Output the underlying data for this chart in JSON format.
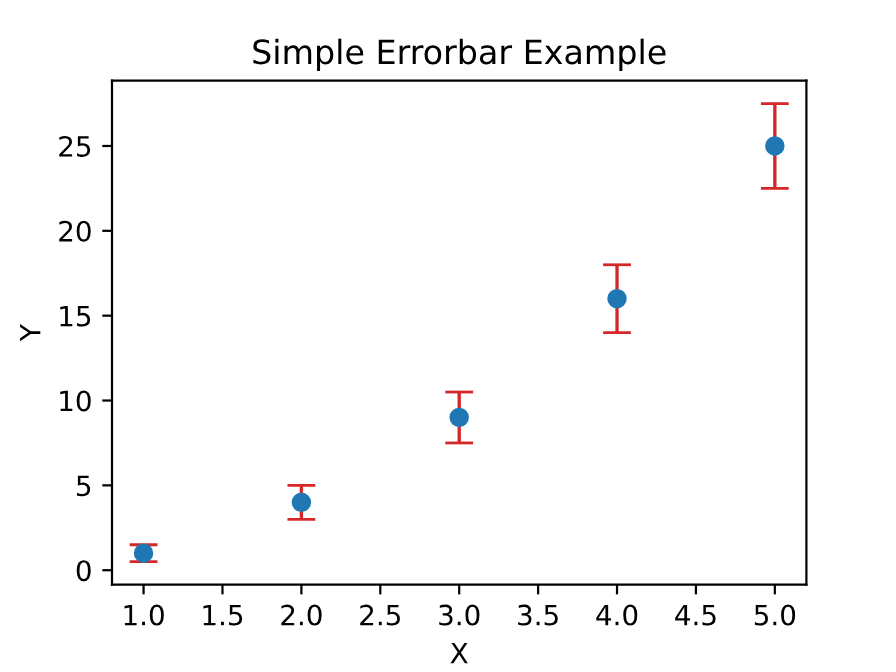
{
  "chart_data": {
    "type": "scatter",
    "title": "Simple Errorbar Example",
    "xlabel": "X",
    "ylabel": "Y",
    "x": [
      1,
      2,
      3,
      4,
      5
    ],
    "series": [
      {
        "color": "#1f77b4",
        "values": [
          1,
          4,
          9,
          16,
          25
        ],
        "errors": [
          0.5,
          1,
          1.5,
          2,
          2.5
        ]
      }
    ],
    "xlim": [
      0.8,
      5.2
    ],
    "xticks": [
      {
        "value": 1,
        "label": "1.0"
      },
      1.5,
      {
        "value": 2,
        "label": "2.0"
      },
      2.5,
      {
        "value": 3,
        "label": "3.0"
      },
      3.5,
      {
        "value": 4,
        "label": "4.0"
      },
      4.5,
      {
        "value": 5,
        "label": "5.0"
      }
    ],
    "ylim": [
      -0.85,
      28.85
    ],
    "yticks": [
      0,
      5,
      10,
      15,
      20,
      25
    ],
    "marker": "circle"
  }
}
